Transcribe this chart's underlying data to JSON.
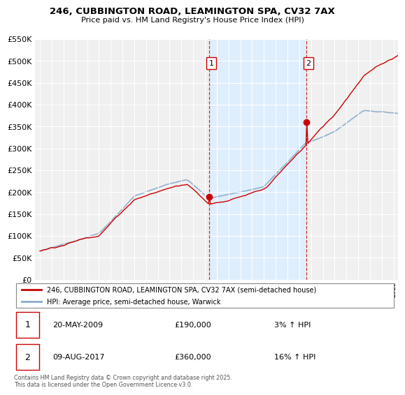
{
  "title": "246, CUBBINGTON ROAD, LEAMINGTON SPA, CV32 7AX",
  "subtitle": "Price paid vs. HM Land Registry's House Price Index (HPI)",
  "legend_line1": "246, CUBBINGTON ROAD, LEAMINGTON SPA, CV32 7AX (semi-detached house)",
  "legend_line2": "HPI: Average price, semi-detached house, Warwick",
  "footnote": "Contains HM Land Registry data © Crown copyright and database right 2025.\nThis data is licensed under the Open Government Licence v3.0.",
  "transaction1_date": "20-MAY-2009",
  "transaction1_price": "£190,000",
  "transaction1_hpi": "3% ↑ HPI",
  "transaction1_year": 2009.38,
  "transaction1_value": 190000,
  "transaction2_date": "09-AUG-2017",
  "transaction2_price": "£360,000",
  "transaction2_hpi": "16% ↑ HPI",
  "transaction2_year": 2017.61,
  "transaction2_value": 360000,
  "red_color": "#cc0000",
  "blue_color": "#88aacc",
  "shade_color": "#ddeeff",
  "bg_color": "#f5f5f5",
  "ylim": [
    0,
    550000
  ],
  "yticks": [
    0,
    50000,
    100000,
    150000,
    200000,
    250000,
    300000,
    350000,
    400000,
    450000,
    500000,
    550000
  ],
  "xlim_left": 1994.6,
  "xlim_right": 2025.4
}
